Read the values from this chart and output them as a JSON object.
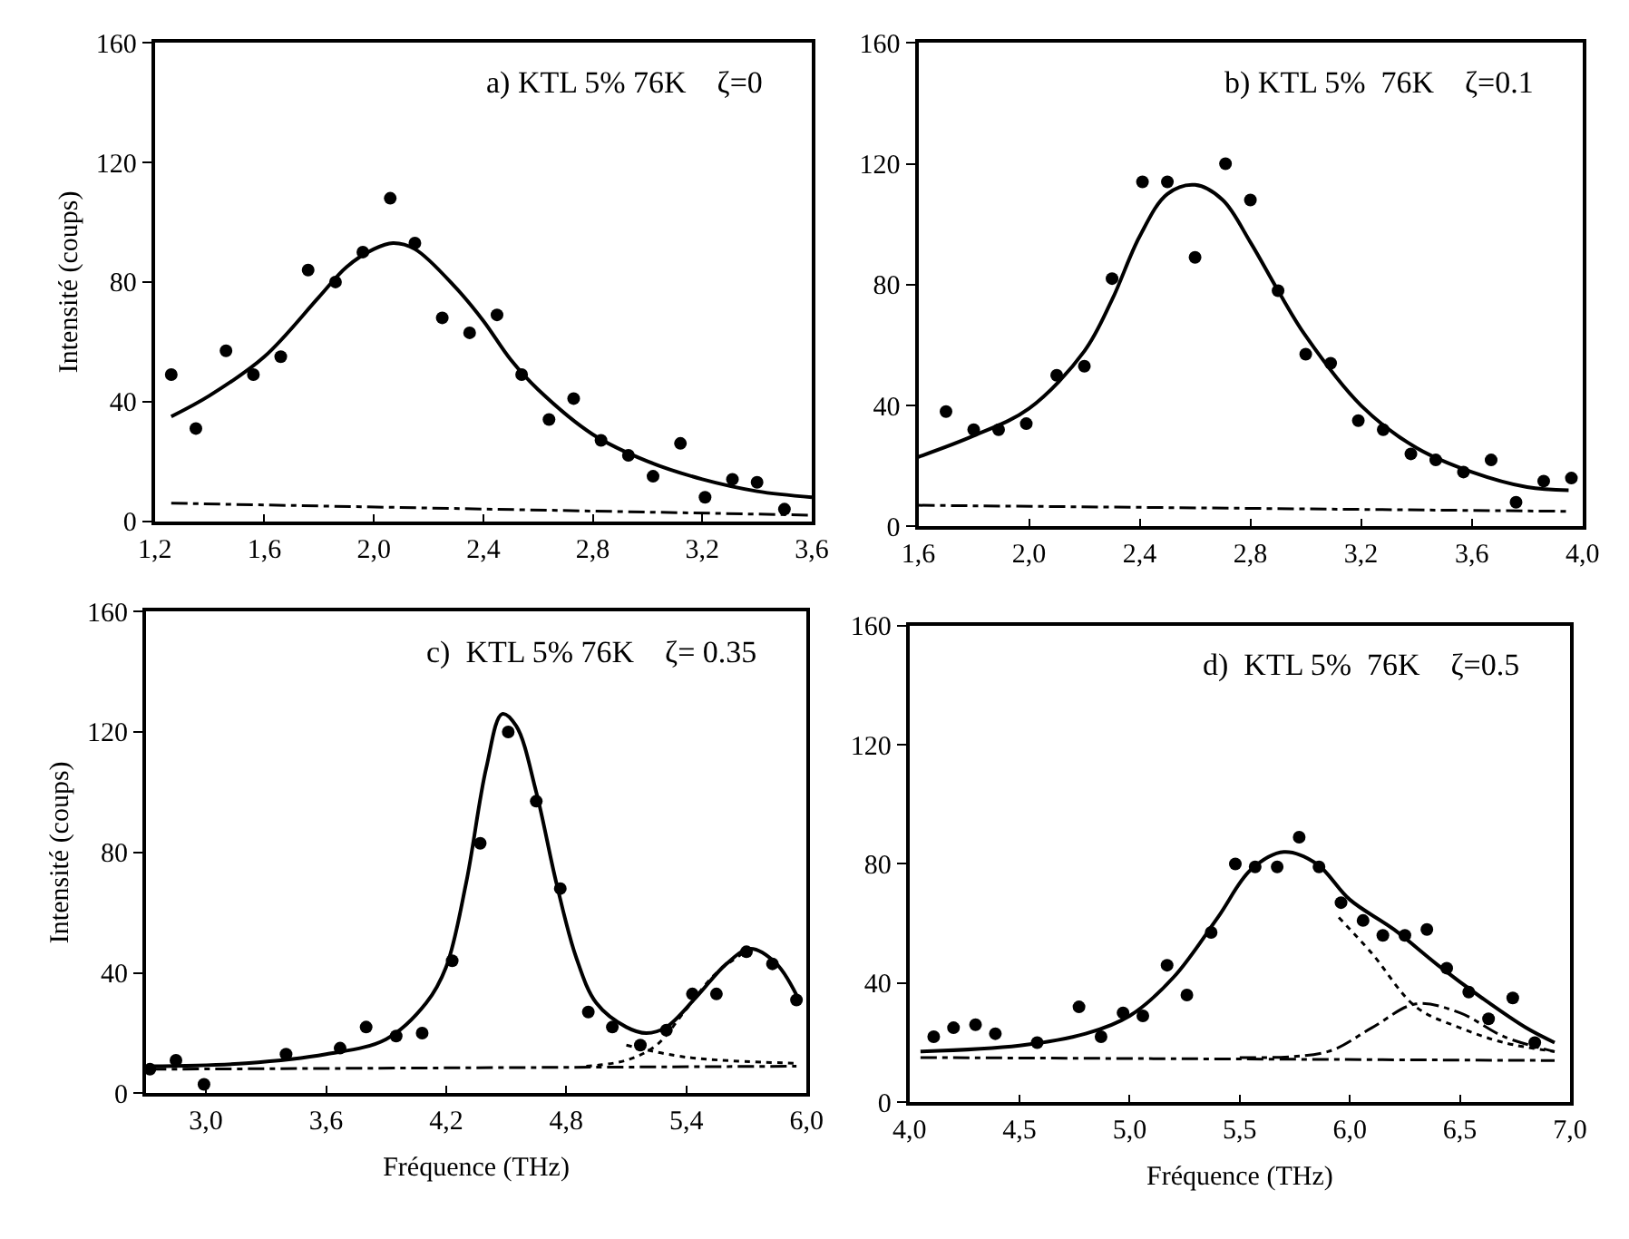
{
  "chart_data": [
    {
      "type": "scatter",
      "title": "a) KTL 5% 76K    ζ=0",
      "ylabel": "Intensité (coups)",
      "xlim": [
        1.2,
        3.6
      ],
      "ylim": [
        0,
        160
      ],
      "xticks": [
        {
          "value": 1.2,
          "label": "1,2"
        },
        {
          "value": 1.6,
          "label": "1,6"
        },
        {
          "value": 2.0,
          "label": "2,0"
        },
        {
          "value": 2.4,
          "label": "2,4"
        },
        {
          "value": 2.8,
          "label": "2,8"
        },
        {
          "value": 3.2,
          "label": "3,2"
        },
        {
          "value": 3.6,
          "label": "3,6"
        }
      ],
      "yticks": [
        0,
        40,
        80,
        120,
        160
      ],
      "series": [
        {
          "marker": "circle",
          "color": "#000000",
          "x": [
            1.26,
            1.35,
            1.46,
            1.56,
            1.66,
            1.76,
            1.86,
            1.96,
            2.06,
            2.15,
            2.25,
            2.35,
            2.45,
            2.54,
            2.64,
            2.73,
            2.83,
            2.93,
            3.02,
            3.12,
            3.21,
            3.31,
            3.4,
            3.5
          ],
          "values": [
            49,
            31,
            57,
            49,
            55,
            84,
            80,
            90,
            108,
            93,
            68,
            63,
            69,
            49,
            34,
            41,
            27,
            22,
            15,
            26,
            8,
            14,
            13,
            4
          ]
        },
        {
          "type": "line",
          "line_style": "solid",
          "marker": "none",
          "color": "#000000",
          "x": [
            1.26,
            1.4,
            1.6,
            1.8,
            1.9,
            2.0,
            2.07,
            2.15,
            2.3,
            2.4,
            2.5,
            2.6,
            2.8,
            3.0,
            3.2,
            3.4,
            3.6
          ],
          "values": [
            35,
            42,
            55,
            75,
            85,
            91,
            93,
            91,
            78,
            67,
            54,
            44,
            29,
            20,
            14,
            10,
            8
          ]
        },
        {
          "type": "line",
          "line_style": "dashed",
          "marker": "none",
          "color": "#000000",
          "x": [
            1.26,
            3.6
          ],
          "values": [
            6,
            2
          ]
        }
      ]
    },
    {
      "type": "scatter",
      "title": "b) KTL 5%  76K    ζ=0.1",
      "xlim": [
        1.6,
        4.0
      ],
      "ylim": [
        0,
        160
      ],
      "xticks": [
        {
          "value": 1.6,
          "label": "1,6"
        },
        {
          "value": 2.0,
          "label": "2,0"
        },
        {
          "value": 2.4,
          "label": "2,4"
        },
        {
          "value": 2.8,
          "label": "2,8"
        },
        {
          "value": 3.2,
          "label": "3,2"
        },
        {
          "value": 3.6,
          "label": "3,6"
        },
        {
          "value": 4.0,
          "label": "4,0"
        }
      ],
      "yticks": [
        0,
        40,
        80,
        120,
        160
      ],
      "series": [
        {
          "marker": "circle",
          "color": "#000000",
          "x": [
            1.7,
            1.8,
            1.89,
            1.99,
            2.1,
            2.2,
            2.3,
            2.41,
            2.5,
            2.6,
            2.71,
            2.8,
            2.9,
            3.0,
            3.09,
            3.19,
            3.28,
            3.38,
            3.47,
            3.57,
            3.67,
            3.76,
            3.86,
            3.96
          ],
          "values": [
            38,
            32,
            32,
            34,
            50,
            53,
            82,
            114,
            114,
            89,
            120,
            108,
            78,
            57,
            54,
            35,
            32,
            24,
            22,
            18,
            22,
            8,
            15,
            16
          ]
        },
        {
          "type": "line",
          "line_style": "solid",
          "marker": "none",
          "color": "#000000",
          "x": [
            1.6,
            1.8,
            2.0,
            2.2,
            2.3,
            2.4,
            2.5,
            2.6,
            2.7,
            2.8,
            2.9,
            3.0,
            3.2,
            3.4,
            3.6,
            3.8,
            3.95
          ],
          "values": [
            23,
            30,
            39,
            58,
            75,
            96,
            110,
            113,
            108,
            94,
            78,
            63,
            40,
            26,
            18,
            13,
            12
          ]
        },
        {
          "type": "line",
          "line_style": "dashed",
          "marker": "none",
          "color": "#000000",
          "x": [
            1.6,
            3.95
          ],
          "values": [
            7,
            5
          ]
        }
      ]
    },
    {
      "type": "scatter",
      "title": "c)  KTL 5% 76K    ζ= 0.35",
      "xlabel": "Fréquence (THz)",
      "ylabel": "Intensité (coups)",
      "xlim": [
        2.7,
        6.0
      ],
      "ylim": [
        0,
        160
      ],
      "xticks": [
        {
          "value": 3.0,
          "label": "3,0"
        },
        {
          "value": 3.6,
          "label": "3,6"
        },
        {
          "value": 4.2,
          "label": "4,2"
        },
        {
          "value": 4.8,
          "label": "4,8"
        },
        {
          "value": 5.4,
          "label": "5,4"
        },
        {
          "value": 6.0,
          "label": "6,0"
        }
      ],
      "yticks": [
        0,
        40,
        80,
        120,
        160
      ],
      "series": [
        {
          "marker": "circle",
          "color": "#000000",
          "x": [
            2.72,
            2.85,
            2.99,
            3.4,
            3.67,
            3.8,
            3.95,
            4.08,
            4.23,
            4.37,
            4.51,
            4.65,
            4.77,
            4.91,
            5.03,
            5.17,
            5.3,
            5.43,
            5.55,
            5.7,
            5.83,
            5.95
          ],
          "values": [
            8,
            11,
            3,
            13,
            15,
            22,
            19,
            20,
            44,
            83,
            120,
            97,
            68,
            27,
            22,
            16,
            21,
            33,
            33,
            47,
            43,
            31
          ]
        },
        {
          "type": "line",
          "line_style": "solid",
          "marker": "none",
          "color": "#000000",
          "x": [
            2.72,
            3.2,
            3.6,
            3.9,
            4.1,
            4.2,
            4.3,
            4.4,
            4.48,
            4.55,
            4.65,
            4.75,
            4.85,
            4.95,
            5.1,
            5.2,
            5.3,
            5.45,
            5.6,
            5.72,
            5.85,
            5.97
          ],
          "values": [
            9,
            10,
            13,
            18,
            30,
            42,
            70,
            108,
            126,
            122,
            100,
            70,
            45,
            30,
            22,
            20,
            22,
            32,
            43,
            48,
            43,
            30
          ]
        },
        {
          "type": "line",
          "line_style": "dotted",
          "marker": "none",
          "color": "#000000",
          "x": [
            4.9,
            5.1,
            5.25,
            5.4,
            5.55,
            5.72
          ],
          "values": [
            9,
            11,
            16,
            28,
            40,
            48
          ]
        },
        {
          "type": "line",
          "line_style": "dotted",
          "marker": "none",
          "color": "#000000",
          "x": [
            5.1,
            5.4,
            5.95
          ],
          "values": [
            16,
            12,
            10
          ]
        },
        {
          "type": "line",
          "line_style": "dashed",
          "marker": "none",
          "color": "#000000",
          "x": [
            2.72,
            5.95
          ],
          "values": [
            8,
            9
          ]
        }
      ]
    },
    {
      "type": "scatter",
      "title": "d)  KTL 5%  76K    ζ=0.5",
      "xlabel": "Fréquence (THz)",
      "xlim": [
        4.0,
        7.0
      ],
      "ylim": [
        0,
        160
      ],
      "xticks": [
        {
          "value": 4.0,
          "label": "4,0"
        },
        {
          "value": 4.5,
          "label": "4,5"
        },
        {
          "value": 5.0,
          "label": "5,0"
        },
        {
          "value": 5.5,
          "label": "5,5"
        },
        {
          "value": 6.0,
          "label": "6,0"
        },
        {
          "value": 6.5,
          "label": "6,5"
        },
        {
          "value": 7.0,
          "label": "7,0"
        }
      ],
      "yticks": [
        0,
        40,
        80,
        120,
        160
      ],
      "series": [
        {
          "marker": "circle",
          "color": "#000000",
          "x": [
            4.11,
            4.2,
            4.3,
            4.39,
            4.58,
            4.77,
            4.87,
            4.97,
            5.06,
            5.17,
            5.26,
            5.37,
            5.48,
            5.57,
            5.67,
            5.77,
            5.86,
            5.96,
            6.06,
            6.15,
            6.25,
            6.35,
            6.44,
            6.54,
            6.63,
            6.74,
            6.84
          ],
          "values": [
            22,
            25,
            26,
            23,
            20,
            32,
            22,
            30,
            29,
            46,
            36,
            57,
            80,
            79,
            79,
            89,
            79,
            67,
            61,
            56,
            56,
            58,
            45,
            37,
            28,
            35,
            20
          ]
        },
        {
          "type": "line",
          "line_style": "solid",
          "marker": "none",
          "color": "#000000",
          "x": [
            4.05,
            4.5,
            4.8,
            5.0,
            5.2,
            5.4,
            5.55,
            5.7,
            5.85,
            6.0,
            6.2,
            6.4,
            6.6,
            6.8,
            6.93
          ],
          "values": [
            17,
            19,
            23,
            29,
            42,
            62,
            78,
            84,
            80,
            68,
            58,
            46,
            35,
            25,
            20
          ]
        },
        {
          "type": "line",
          "line_style": "dotted",
          "marker": "none",
          "color": "#000000",
          "x": [
            5.95,
            6.1,
            6.3,
            6.5,
            6.7,
            6.93
          ],
          "values": [
            62,
            50,
            32,
            25,
            20,
            17
          ]
        },
        {
          "type": "line",
          "line_style": "dashed",
          "marker": "none",
          "color": "#000000",
          "x": [
            5.5,
            5.9,
            6.1,
            6.3,
            6.5,
            6.7,
            6.93
          ],
          "values": [
            15,
            17,
            25,
            33,
            30,
            22,
            17
          ]
        },
        {
          "type": "line",
          "line_style": "dashed",
          "marker": "none",
          "color": "#000000",
          "x": [
            4.05,
            6.93
          ],
          "values": [
            15,
            14
          ]
        }
      ]
    }
  ]
}
